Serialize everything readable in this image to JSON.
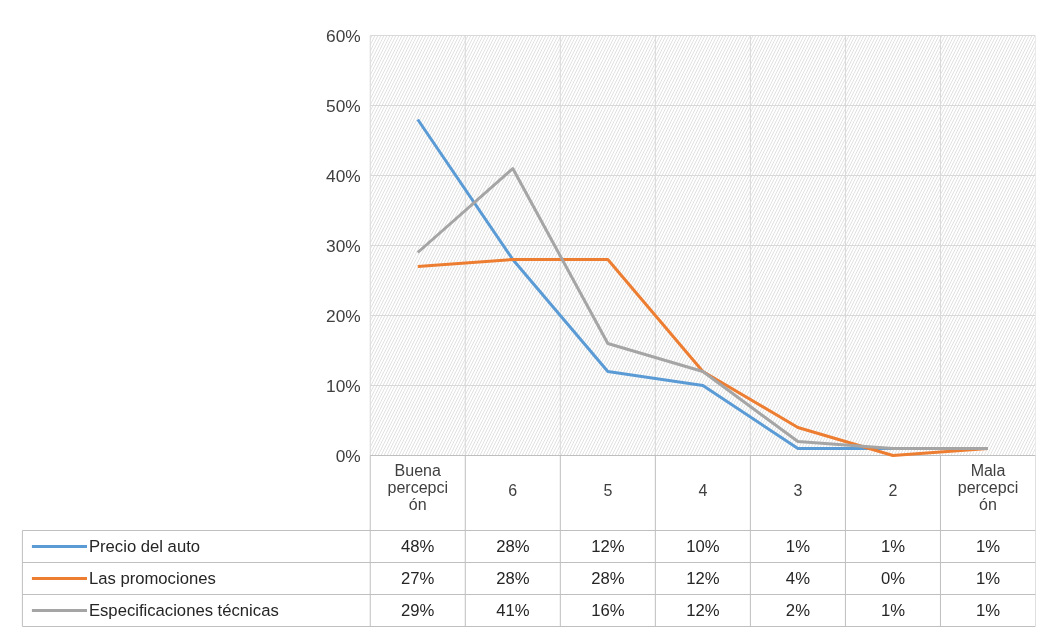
{
  "chart_data": {
    "type": "line",
    "categories": [
      "Buena percepción",
      "6",
      "5",
      "4",
      "3",
      "2",
      "Mala percepción"
    ],
    "series": [
      {
        "name": "Precio del auto",
        "color": "#5b9bd5",
        "values": [
          48,
          28,
          12,
          10,
          1,
          1,
          1
        ],
        "value_labels": [
          "48%",
          "28%",
          "12%",
          "10%",
          "1%",
          "1%",
          "1%"
        ]
      },
      {
        "name": "Las promociones",
        "color": "#ed7d31",
        "values": [
          27,
          28,
          28,
          12,
          4,
          0,
          1
        ],
        "value_labels": [
          "27%",
          "28%",
          "28%",
          "12%",
          "4%",
          "0%",
          "1%"
        ]
      },
      {
        "name": "Especificaciones técnicas",
        "color": "#a5a5a5",
        "values": [
          29,
          41,
          16,
          12,
          2,
          1,
          1
        ],
        "value_labels": [
          "29%",
          "41%",
          "16%",
          "12%",
          "2%",
          "1%",
          "1%"
        ]
      }
    ],
    "ylim": [
      0,
      60
    ],
    "yticks": [
      {
        "value": 0,
        "label": "0%"
      },
      {
        "value": 10,
        "label": "10%"
      },
      {
        "value": 20,
        "label": "20%"
      },
      {
        "value": 30,
        "label": "30%"
      },
      {
        "value": 40,
        "label": "40%"
      },
      {
        "value": 50,
        "label": "50%"
      },
      {
        "value": 60,
        "label": "60%"
      }
    ],
    "grid": true,
    "legend": "bottom",
    "marker": "none",
    "line_style": "solid"
  }
}
